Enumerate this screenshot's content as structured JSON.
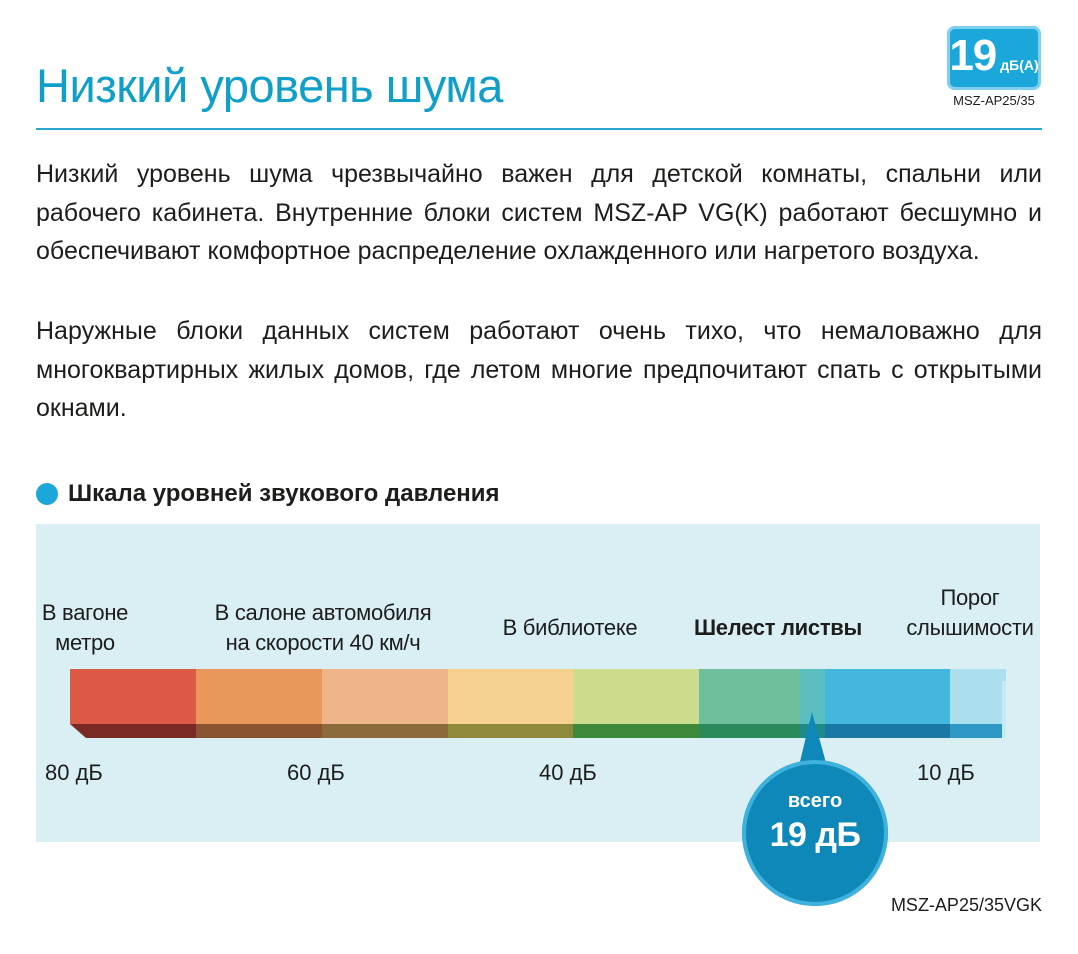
{
  "header": {
    "title": "Низкий уровень шума",
    "badge_value": "19",
    "badge_unit": "дБ(А)",
    "badge_model": "MSZ-AP25/35"
  },
  "paragraphs": [
    "Низкий уровень шума чрезвычайно важен для детской комнаты, спальни или рабочего кабинета. Внутренние блоки систем MSZ-AP VG(K) работают бесшумно и обеспечивают комфортное распределение охлажденного или нагретого воздуха.",
    "Наружные блоки данных систем работают очень тихо, что немаловажно для многоквартирных жилых домов, где летом многие предпочитают спать с открытыми окнами."
  ],
  "section": {
    "title": "Шкала уровней звукового давления"
  },
  "scale": {
    "labels": [
      {
        "line1": "В вагоне",
        "line2": "метро"
      },
      {
        "line1": "В салоне автомобиля",
        "line2": "на скорости 40 км/ч"
      },
      {
        "line1": "В библиотеке",
        "line2": ""
      },
      {
        "line1": "Шелест листвы",
        "line2": ""
      },
      {
        "line1": "Порог",
        "line2": "слышимости"
      }
    ],
    "db_marks": [
      "80 дБ",
      "60 дБ",
      "40 дБ",
      "10 дБ"
    ],
    "segment_colors": [
      "#dc5a45",
      "#e9975a",
      "#efb48a",
      "#f6d18f",
      "#cbdc8c",
      "#6fbf9c",
      "#5bbfbf",
      "#44b7dc",
      "#acdfee"
    ],
    "shadow_colors": [
      "#7a2a24",
      "#8a5330",
      "#8a6a3a",
      "#8e8a3a",
      "#3e8a3a",
      "#2a8a5a",
      "#1f8a8a",
      "#1a78a4",
      "#2e98c4"
    ]
  },
  "callout": {
    "small": "всего",
    "big": "19 дБ"
  },
  "footer": {
    "model": "MSZ-AP25/35VGK"
  }
}
